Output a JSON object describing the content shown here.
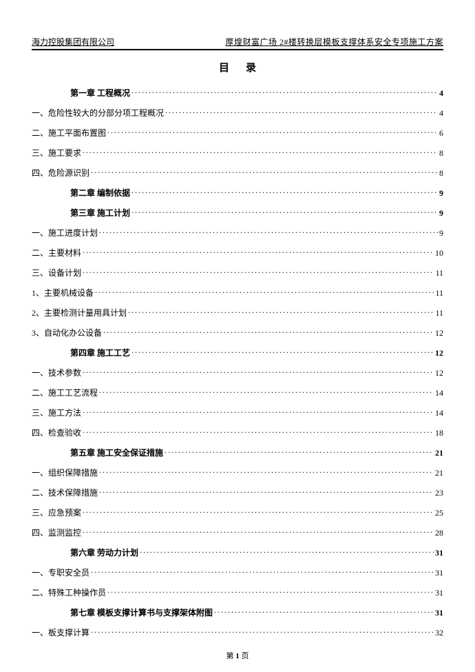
{
  "header": {
    "company": "海力控股集团有限公司",
    "doc_title": "厚煌财富广场 2#楼转换层模板支撑体系安全专项施工方案"
  },
  "title": "目录",
  "toc": [
    {
      "type": "chapter",
      "label": "第一章 工程概况",
      "page": "4"
    },
    {
      "type": "entry",
      "label": "一、危险性较大的分部分项工程概况",
      "page": "4"
    },
    {
      "type": "entry",
      "label": "二、施工平面布置图",
      "page": "6"
    },
    {
      "type": "entry",
      "label": "三、施工要求",
      "page": "8"
    },
    {
      "type": "entry",
      "label": "四、危险源识别",
      "page": "8"
    },
    {
      "type": "chapter",
      "label": "第二章 编制依据",
      "page": "9"
    },
    {
      "type": "chapter",
      "label": "第三章 施工计划",
      "page": "9"
    },
    {
      "type": "entry",
      "label": "一、施工进度计划",
      "page": "9"
    },
    {
      "type": "entry",
      "label": "二、主要材料",
      "page": "10"
    },
    {
      "type": "entry",
      "label": "三、设备计划",
      "page": "11"
    },
    {
      "type": "entry",
      "label": "1、主要机械设备",
      "page": "11"
    },
    {
      "type": "entry",
      "label": "2、主要检测计量用具计划",
      "page": "11"
    },
    {
      "type": "entry",
      "label": "3、自动化办公设备",
      "page": "12"
    },
    {
      "type": "chapter",
      "label": "第四章 施工工艺",
      "page": "12"
    },
    {
      "type": "entry",
      "label": "一、技术参数",
      "page": "12"
    },
    {
      "type": "entry",
      "label": "二、施工工艺流程",
      "page": "14"
    },
    {
      "type": "entry",
      "label": "三、施工方法",
      "page": "14"
    },
    {
      "type": "entry",
      "label": "四、检查验收",
      "page": "18"
    },
    {
      "type": "chapter",
      "label": "第五章 施工安全保证措施",
      "page": "21"
    },
    {
      "type": "entry",
      "label": "一、组织保障措施",
      "page": "21"
    },
    {
      "type": "entry",
      "label": "二、技术保障措施",
      "page": "23"
    },
    {
      "type": "entry",
      "label": "三、应急预案",
      "page": "25"
    },
    {
      "type": "entry",
      "label": "四、监测监控",
      "page": "28"
    },
    {
      "type": "chapter",
      "label": "第六章 劳动力计划",
      "page": "31"
    },
    {
      "type": "entry",
      "label": "一、专职安全员",
      "page": "31"
    },
    {
      "type": "entry",
      "label": "二、特殊工种操作员",
      "page": "31"
    },
    {
      "type": "chapter",
      "label": "第七章 模板支撑计算书与支撑架体附图",
      "page": "31"
    },
    {
      "type": "entry",
      "label": "一、板支撑计算",
      "page": "32"
    }
  ],
  "footer": {
    "prefix": "第 ",
    "num": "1",
    "suffix": " 页"
  }
}
